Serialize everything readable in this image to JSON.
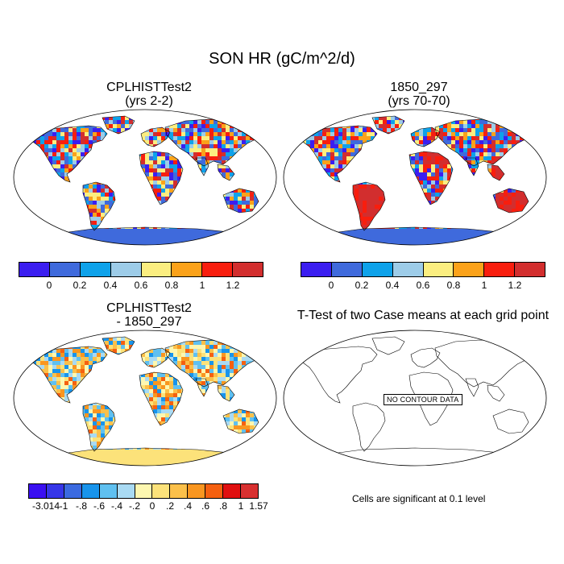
{
  "title": "SON HR (gC/m^2/d)",
  "panels": [
    {
      "title": "CPLHISTTest2",
      "subtitle": "(yrs 2-2)"
    },
    {
      "title": "1850_297",
      "subtitle": "(yrs 70-70)"
    },
    {
      "title": "CPLHISTTest2",
      "subtitle": "- 1850_297"
    },
    {
      "title": "T-Test of two Case means at each grid point",
      "subtitle": ""
    }
  ],
  "colorbar_top": {
    "colors": [
      "#3b1ef0",
      "#3f6adc",
      "#0ea2ea",
      "#9dcce8",
      "#fbee80",
      "#fba21a",
      "#f81e0e",
      "#d22e2e"
    ],
    "labels": [
      "0",
      "0.2",
      "0.4",
      "0.6",
      "0.8",
      "1",
      "1.2"
    ]
  },
  "colorbar_diff": {
    "colors": [
      "#3a10f2",
      "#3636e8",
      "#3b6ae0",
      "#1894ec",
      "#5fc0f0",
      "#a9daf3",
      "#fdf7b0",
      "#fce27a",
      "#fbc04a",
      "#f99620",
      "#f56010",
      "#e01010",
      "#d83030"
    ],
    "labels": [
      "-3.014",
      "-1",
      "-.8",
      "-.6",
      "-.4",
      "-.2",
      "0",
      ".2",
      ".4",
      ".6",
      ".8",
      "1",
      "1.57"
    ]
  },
  "no_contour_label": "NO CONTOUR DATA",
  "significance_note": "Cells are significant at 0.1 level"
}
